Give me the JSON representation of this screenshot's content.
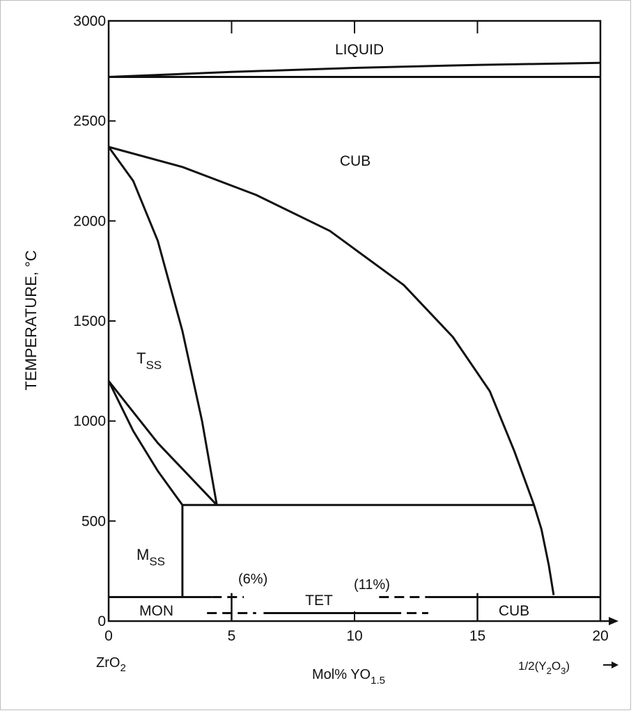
{
  "chart_data": {
    "type": "line",
    "ylabel": "TEMPERATURE, °C",
    "xlabel": "Mol% YO",
    "xlabel_sub": "1.5",
    "left_component": {
      "base": "ZrO",
      "sub": "2"
    },
    "right_component": {
      "prefix": "1/2(Y",
      "sub1": "2",
      "mid": "O",
      "sub2": "3",
      "suffix": ")"
    },
    "xlim": [
      0,
      20
    ],
    "ylim": [
      0,
      3000
    ],
    "x_ticks": [
      "0",
      "5",
      "10",
      "15",
      "20"
    ],
    "y_ticks": [
      "0",
      "500",
      "1000",
      "1500",
      "2000",
      "2500",
      "3000"
    ],
    "grid": false,
    "phase_labels": {
      "liquid": "LIQUID",
      "cub_high": "CUB",
      "tss_base": "T",
      "tss_sub": "SS",
      "mss_base": "M",
      "mss_sub": "SS",
      "mon": "MON",
      "tet": "TET",
      "cub_low": "CUB",
      "pct6": "(6%)",
      "pct11": "(11%)"
    },
    "series": [
      {
        "style": "solid",
        "points": [
          [
            0,
            2720
          ],
          [
            20,
            2720
          ]
        ]
      },
      {
        "style": "solid",
        "points": [
          [
            0,
            2720
          ],
          [
            5,
            2745
          ],
          [
            10,
            2765
          ],
          [
            15,
            2780
          ],
          [
            20,
            2790
          ]
        ]
      },
      {
        "style": "solid",
        "points": [
          [
            0,
            2370
          ],
          [
            3,
            2270
          ],
          [
            6,
            2130
          ],
          [
            9,
            1950
          ],
          [
            12,
            1680
          ],
          [
            14,
            1420
          ],
          [
            15.5,
            1150
          ],
          [
            16.5,
            850
          ],
          [
            17.3,
            580
          ],
          [
            17.6,
            460
          ],
          [
            17.9,
            280
          ],
          [
            18.1,
            130
          ]
        ]
      },
      {
        "style": "solid",
        "points": [
          [
            0,
            2370
          ],
          [
            1,
            2200
          ],
          [
            2,
            1900
          ],
          [
            3,
            1450
          ],
          [
            3.8,
            1000
          ],
          [
            4.4,
            580
          ]
        ]
      },
      {
        "style": "solid",
        "points": [
          [
            0,
            1200
          ],
          [
            2,
            890
          ],
          [
            4.4,
            580
          ]
        ]
      },
      {
        "style": "solid",
        "points": [
          [
            0,
            1200
          ],
          [
            1,
            950
          ],
          [
            2,
            750
          ],
          [
            3,
            580
          ]
        ]
      },
      {
        "style": "solid",
        "points": [
          [
            3,
            580
          ],
          [
            17.3,
            580
          ]
        ]
      },
      {
        "style": "solid",
        "points": [
          [
            3,
            580
          ],
          [
            3,
            120
          ]
        ]
      },
      {
        "style": "solid",
        "points": [
          [
            0,
            120
          ],
          [
            4.2,
            120
          ]
        ]
      },
      {
        "style": "solid",
        "points": [
          [
            13,
            120
          ],
          [
            20,
            120
          ]
        ]
      },
      {
        "style": "dashed",
        "points": [
          [
            4.2,
            120
          ],
          [
            5.5,
            120
          ]
        ]
      },
      {
        "style": "dashed",
        "points": [
          [
            11,
            120
          ],
          [
            13,
            120
          ]
        ]
      },
      {
        "style": "dashed",
        "points": [
          [
            4,
            40
          ],
          [
            6,
            40
          ]
        ]
      },
      {
        "style": "solid",
        "points": [
          [
            6.3,
            40
          ],
          [
            11.5,
            40
          ]
        ]
      },
      {
        "style": "dashed",
        "points": [
          [
            11.5,
            40
          ],
          [
            13,
            40
          ]
        ]
      }
    ]
  }
}
